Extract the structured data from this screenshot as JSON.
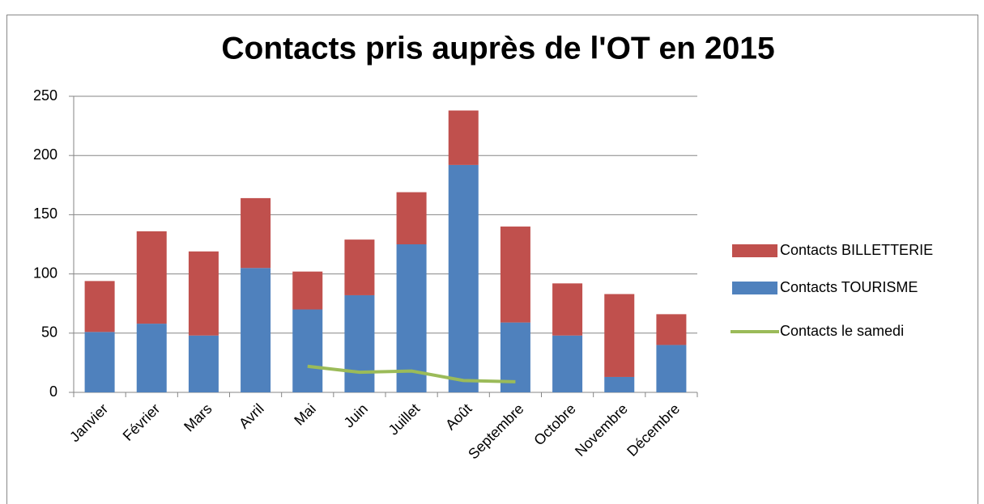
{
  "chart_data": {
    "type": "bar",
    "stacked": true,
    "title": "Contacts pris auprès de l'OT en 2015",
    "categories": [
      "Janvier",
      "Février",
      "Mars",
      "Avril",
      "Mai",
      "Juin",
      "Juillet",
      "Août",
      "Septembre",
      "Octobre",
      "Novembre",
      "Décembre"
    ],
    "series": [
      {
        "name": "Contacts TOURISME",
        "color": "#4f81bd",
        "type": "bar",
        "values": [
          51,
          58,
          48,
          105,
          70,
          82,
          125,
          192,
          59,
          48,
          13,
          40
        ]
      },
      {
        "name": "Contacts BILLETTERIE",
        "color": "#c0504d",
        "type": "bar",
        "values": [
          43,
          78,
          71,
          59,
          32,
          47,
          44,
          46,
          81,
          44,
          70,
          26
        ]
      },
      {
        "name": "Contacts le samedi",
        "color": "#9bbb59",
        "type": "line",
        "values": [
          null,
          null,
          null,
          null,
          22,
          17,
          18,
          10,
          9,
          null,
          null,
          null
        ]
      }
    ],
    "ylim": [
      0,
      250
    ],
    "yticks": [
      0,
      50,
      100,
      150,
      200,
      250
    ],
    "grid": true,
    "legend": "right"
  }
}
